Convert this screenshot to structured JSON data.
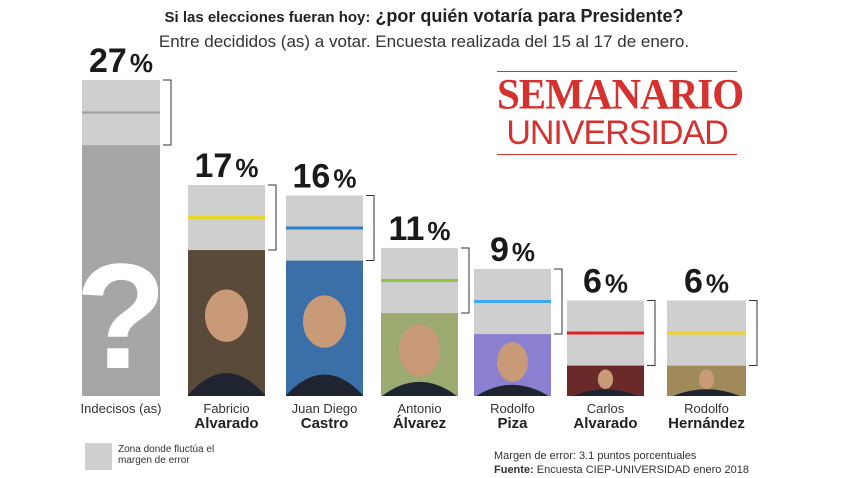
{
  "header": {
    "lead": "Si las elecciones fueran hoy:",
    "question": "¿por quién votaría para Presidente?",
    "subtitle": "Entre decididos (as) a votar. Encuesta realizada del 15 al 17 de enero."
  },
  "logo": {
    "line1": "SEMANARIO",
    "line2": "UNIVERSIDAD"
  },
  "chart_data": {
    "type": "bar",
    "title": "Si las elecciones fueran hoy: ¿por quién votaría para Presidente?",
    "subtitle": "Entre decididos (as) a votar. Encuesta realizada del 15 al 17 de enero.",
    "unit": "%",
    "margin_of_error": 3.1,
    "categories": [
      {
        "first": "Indecisos (as)",
        "last": "",
        "value": 27,
        "color": "#9e9e9e",
        "photo": "question-mark"
      },
      {
        "first": "Fabricio",
        "last": "Alvarado",
        "value": 17,
        "color": "#e8d82a",
        "photo": "portrait"
      },
      {
        "first": "Juan Diego",
        "last": "Castro",
        "value": 16,
        "color": "#2a7fc9",
        "photo": "portrait"
      },
      {
        "first": "Antonio",
        "last": "Álvarez",
        "value": 11,
        "color": "#8cc63e",
        "photo": "portrait"
      },
      {
        "first": "Rodolfo",
        "last": "Piza",
        "value": 9,
        "color": "#3fa9f5",
        "photo": "portrait"
      },
      {
        "first": "Carlos",
        "last": "Alvarado",
        "value": 6,
        "color": "#e02020",
        "photo": "portrait"
      },
      {
        "first": "Rodolfo",
        "last": "Hernández",
        "value": 6,
        "color": "#f2d21c",
        "photo": "portrait"
      }
    ]
  },
  "legend": {
    "text": "Zona donde fluctúa el margen de error"
  },
  "footer": {
    "margin": "Margen de error: 3.1 puntos porcentuales",
    "source_label": "Fuente:",
    "source": "Encuesta CIEP-UNIVERSIDAD enero 2018"
  }
}
